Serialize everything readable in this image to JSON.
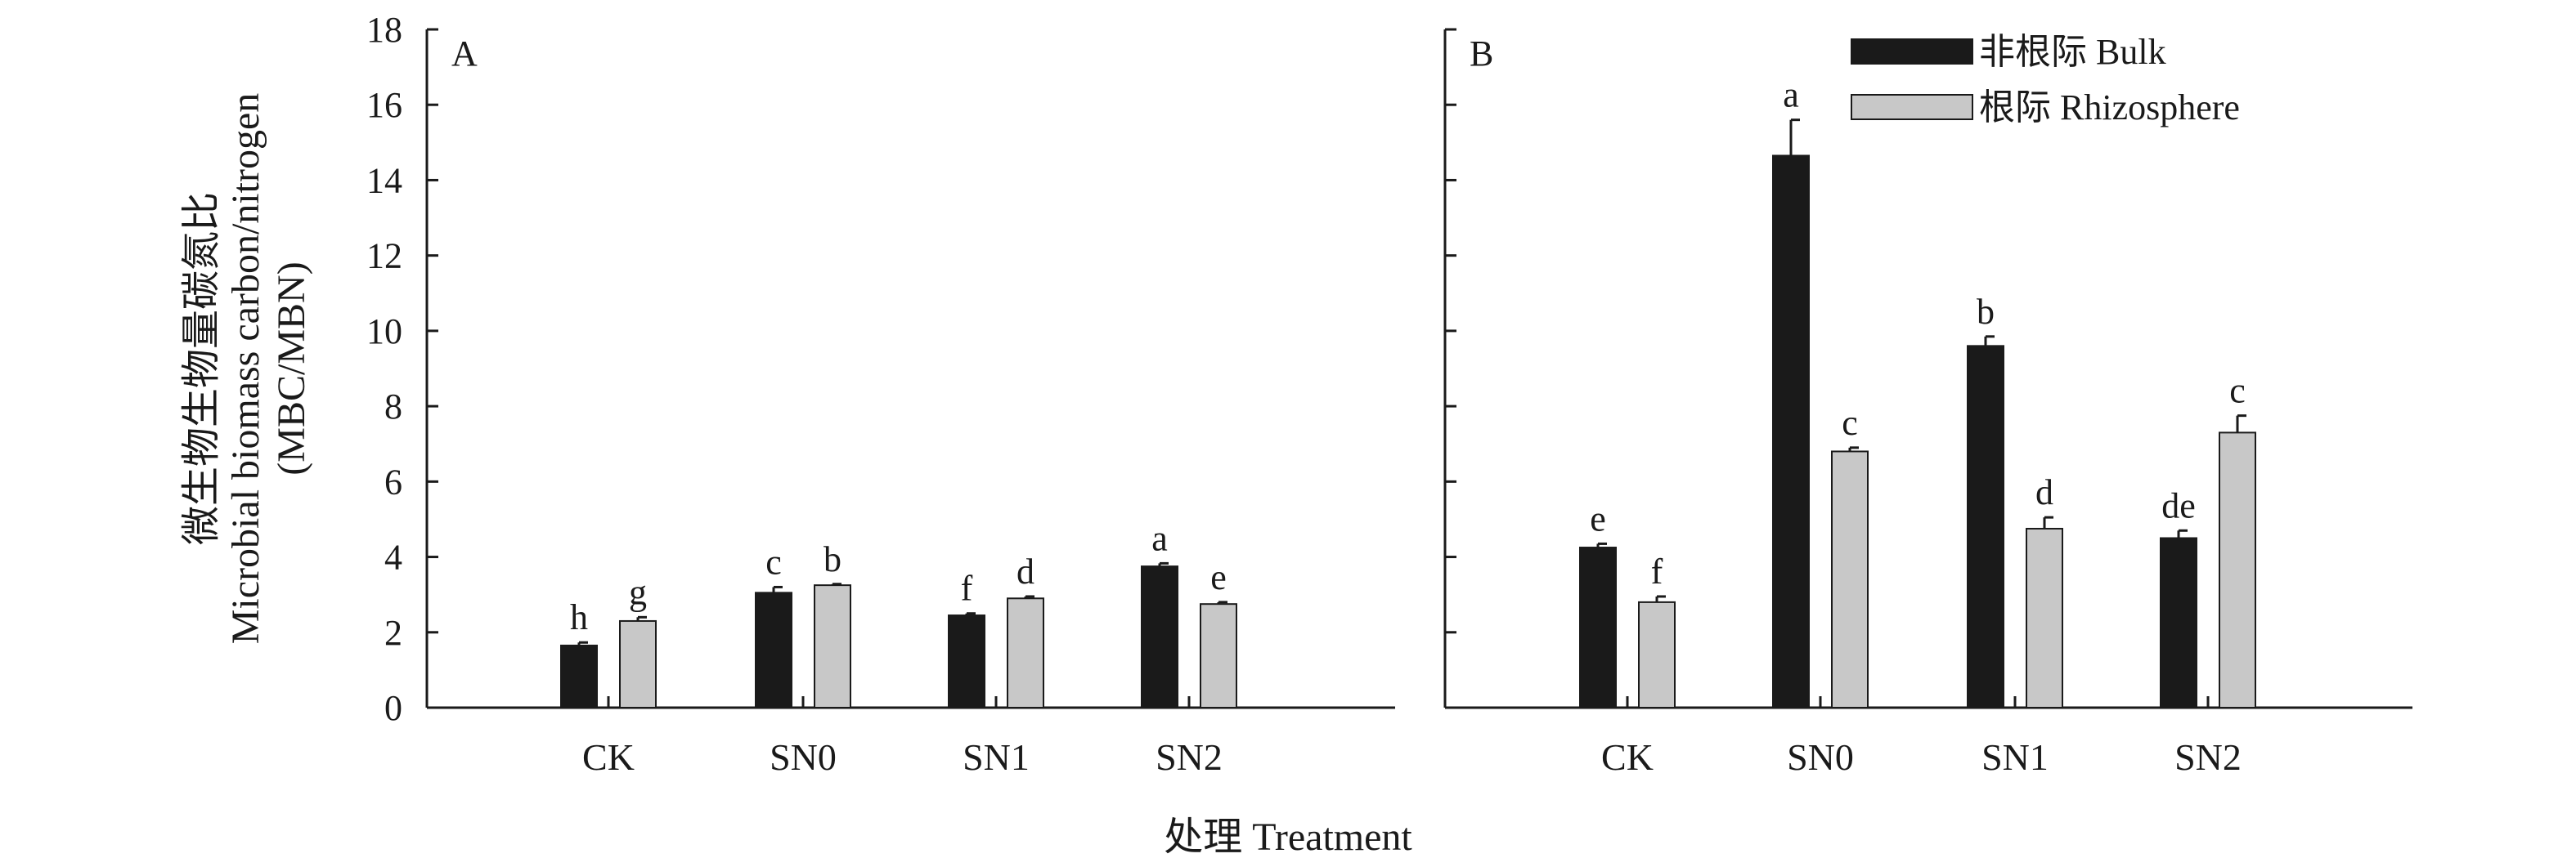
{
  "y_axis": {
    "title_lines": [
      "微生物生物量碳氮比",
      "Microbial biomass carbon/nitrogen",
      "(MBC/MBN)"
    ]
  },
  "x_axis": {
    "title": "处理 Treatment"
  },
  "legend": {
    "placement": "top-right of panel B",
    "entries": [
      {
        "label": "非根际 Bulk",
        "color": "#1a1a1a"
      },
      {
        "label": "根际 Rhizosphere",
        "color": "#c8c8c8"
      }
    ]
  },
  "chart_data": [
    {
      "type": "bar",
      "panel": "A",
      "categories": [
        "CK",
        "SN0",
        "SN1",
        "SN2"
      ],
      "ylim": [
        0,
        18
      ],
      "yticks": [
        0,
        2,
        4,
        6,
        8,
        10,
        12,
        14,
        16,
        18
      ],
      "grid": false,
      "series": [
        {
          "name": "非根际 Bulk",
          "color": "#1a1a1a",
          "values": [
            1.65,
            3.05,
            2.45,
            3.75
          ],
          "errors": [
            0.08,
            0.15,
            0.05,
            0.08
          ],
          "letters": [
            "h",
            "c",
            "f",
            "a"
          ]
        },
        {
          "name": "根际 Rhizosphere",
          "color": "#c8c8c8",
          "values": [
            2.3,
            3.25,
            2.9,
            2.75
          ],
          "errors": [
            0.1,
            0.03,
            0.05,
            0.05
          ],
          "letters": [
            "g",
            "b",
            "d",
            "e"
          ]
        }
      ]
    },
    {
      "type": "bar",
      "panel": "B",
      "categories": [
        "CK",
        "SN0",
        "SN1",
        "SN2"
      ],
      "ylim": [
        0,
        18
      ],
      "yticks": [
        0,
        2,
        4,
        6,
        8,
        10,
        12,
        14,
        16,
        18
      ],
      "grid": false,
      "series": [
        {
          "name": "非根际 Bulk",
          "color": "#1a1a1a",
          "values": [
            4.25,
            14.65,
            9.6,
            4.5
          ],
          "errors": [
            0.1,
            0.95,
            0.25,
            0.2
          ],
          "letters": [
            "e",
            "a",
            "b",
            "de"
          ]
        },
        {
          "name": "根际 Rhizosphere",
          "color": "#c8c8c8",
          "values": [
            2.8,
            6.8,
            4.75,
            7.3
          ],
          "errors": [
            0.15,
            0.1,
            0.3,
            0.45
          ],
          "letters": [
            "f",
            "c",
            "d",
            "c"
          ]
        }
      ]
    }
  ]
}
